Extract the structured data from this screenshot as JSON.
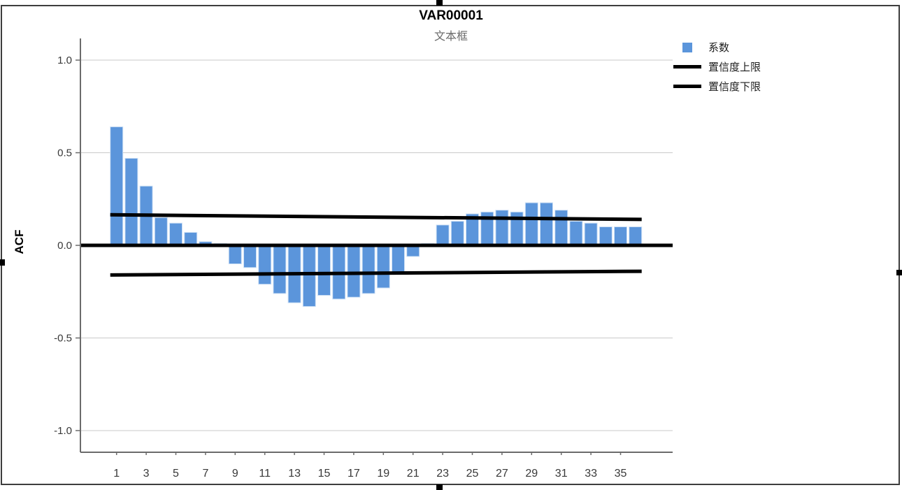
{
  "figure": {
    "title": "VAR00001",
    "subtitle": "文本框",
    "y_axis_title": "ACF"
  },
  "legend": {
    "position": "top-right",
    "items": [
      {
        "label": "系数",
        "symbol": "square",
        "color": "#5B95DB"
      },
      {
        "label": "置信度上限",
        "symbol": "line",
        "color": "#000000"
      },
      {
        "label": "置信度下限",
        "symbol": "line",
        "color": "#000000"
      }
    ]
  },
  "chart_data": {
    "type": "bar",
    "title": "VAR00001",
    "subtitle": "文本框",
    "ylabel": "ACF",
    "xlabel": "",
    "series_name": "系数",
    "x": [
      1,
      2,
      3,
      4,
      5,
      6,
      7,
      8,
      9,
      10,
      11,
      12,
      13,
      14,
      15,
      16,
      17,
      18,
      19,
      20,
      21,
      22,
      23,
      24,
      25,
      26,
      27,
      28,
      29,
      30,
      31,
      32,
      33,
      34,
      35,
      36
    ],
    "acf_values": [
      0.64,
      0.47,
      0.32,
      0.15,
      0.12,
      0.07,
      0.02,
      0.01,
      -0.1,
      -0.12,
      -0.21,
      -0.26,
      -0.31,
      -0.33,
      -0.27,
      -0.29,
      -0.28,
      -0.26,
      -0.23,
      -0.15,
      -0.06,
      0.01,
      0.11,
      0.13,
      0.17,
      0.18,
      0.19,
      0.18,
      0.23,
      0.23,
      0.19,
      0.13,
      0.12,
      0.1,
      0.1,
      0.1
    ],
    "confidence_upper": {
      "label": "置信度上限",
      "start_value": 0.165,
      "end_value": 0.14
    },
    "confidence_lower": {
      "label": "置信度下限",
      "start_value": -0.16,
      "end_value": -0.14
    },
    "ylim": [
      -1.0,
      1.0
    ],
    "y_ticks": [
      1.0,
      0.5,
      0.0,
      -0.5,
      -1.0
    ],
    "x_tick_labels": [
      "1",
      "3",
      "5",
      "7",
      "9",
      "11",
      "13",
      "15",
      "17",
      "19",
      "21",
      "23",
      "25",
      "27",
      "29",
      "31",
      "33",
      "35"
    ],
    "grid": "horizontal-light",
    "legend_position": "top-right",
    "bar_color": "#5B95DB",
    "gridline_color": "#cacaca",
    "axis_color": "#6b6b6b",
    "tick_label_color": "#383838",
    "confidence_line_color": "#000000",
    "zero_line_color": "#000000"
  }
}
